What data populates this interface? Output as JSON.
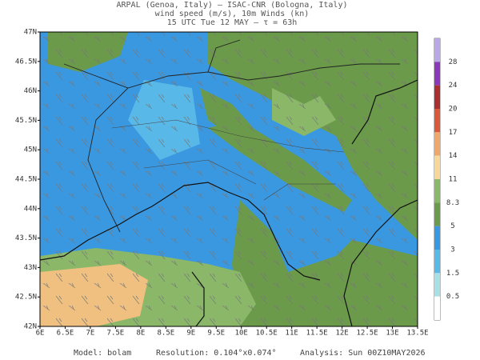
{
  "header": {
    "lines": [
      "ARPAL (Genoa, Italy)  —  ISAC-CNR (Bologna, Italy)",
      "wind speed (m/s), 10m Winds (kn)",
      "15 UTC Tue 12 MAY  —  τ = 63h"
    ]
  },
  "map": {
    "lat_labels": [
      "47N",
      "46.5N",
      "46N",
      "45.5N",
      "45N",
      "44.5N",
      "44N",
      "43.5N",
      "43N",
      "42.5N",
      "42N"
    ],
    "lon_labels": [
      "6E",
      "6.5E",
      "7E",
      "7.5E",
      "8E",
      "8.5E",
      "9E",
      "9.5E",
      "10E",
      "10.5E",
      "11E",
      "11.5E",
      "12E",
      "12.5E",
      "13E",
      "13.5E"
    ]
  },
  "colorbar": {
    "labels": [
      28,
      24,
      20,
      17,
      14,
      11,
      8.3,
      5,
      3,
      1.5,
      0.5
    ],
    "colors": [
      "#b8a8e8",
      "#8a3ab8",
      "#a83030",
      "#d85a3a",
      "#f0a868",
      "#f8d898",
      "#8ab868",
      "#6a9a4a",
      "#3a98e0",
      "#58b8e8",
      "#a8e0e8",
      "#ffffff"
    ]
  },
  "footer": {
    "model": "Model: bolam",
    "resolution": "Resolution: 0.104°x0.074°",
    "analysis": "Analysis: Sun 00Z10MAY2026"
  }
}
